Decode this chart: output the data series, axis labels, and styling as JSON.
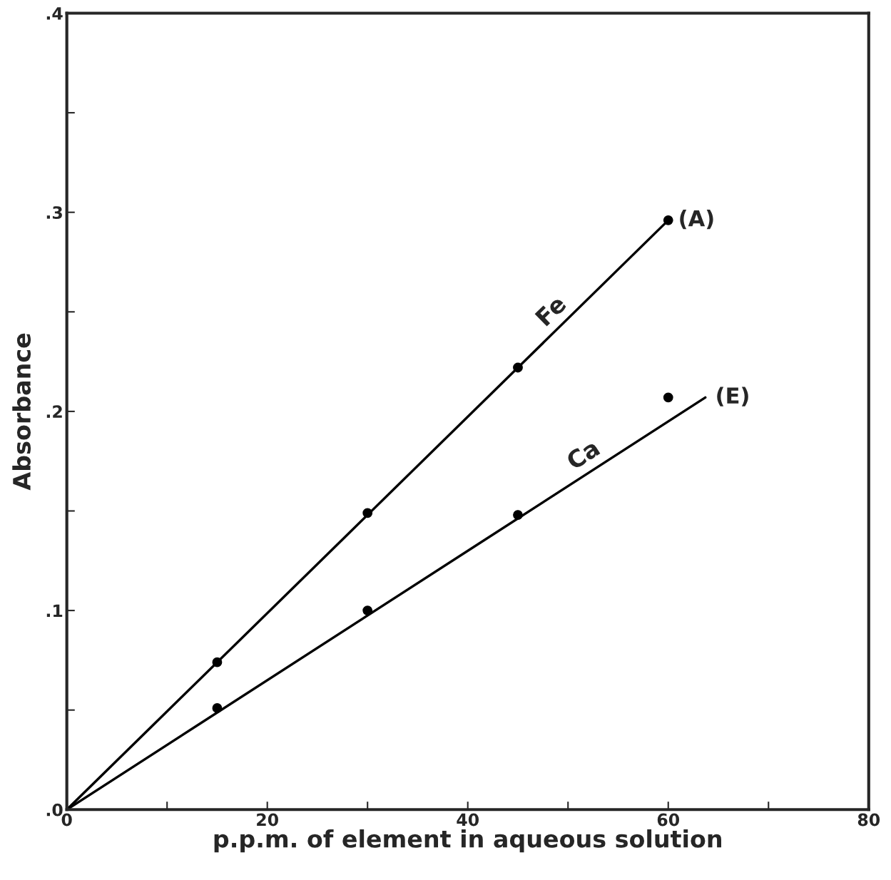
{
  "chart_data": {
    "type": "line",
    "xlabel": "p.p.m. of element in aqueous solution",
    "ylabel": "Absorbance",
    "xlim": [
      0,
      80
    ],
    "ylim": [
      0,
      0.4
    ],
    "xticks": [
      0,
      {
        "value": 10,
        "label": null
      },
      20,
      {
        "value": 30,
        "label": null
      },
      40,
      {
        "value": 50,
        "label": null
      },
      60,
      {
        "value": 70,
        "label": null
      },
      80
    ],
    "yticks": [
      {
        "value": 0,
        "label": ".0"
      },
      {
        "value": 0.05,
        "label": null
      },
      {
        "value": 0.1,
        "label": ".1"
      },
      {
        "value": 0.15,
        "label": null
      },
      {
        "value": 0.2,
        "label": ".2"
      },
      {
        "value": 0.25,
        "label": null
      },
      {
        "value": 0.3,
        "label": ".3"
      },
      {
        "value": 0.35,
        "label": null
      },
      {
        "value": 0.4,
        "label": ".4"
      }
    ],
    "grid": false,
    "legend": false,
    "series": [
      {
        "type": "scatter",
        "color": "#000000",
        "marker": "circle",
        "x": [
          15,
          30,
          45,
          60
        ],
        "values": [
          0.074,
          0.149,
          0.222,
          0.296
        ]
      },
      {
        "type": "scatter",
        "color": "#000000",
        "marker": "circle",
        "x": [
          15,
          30,
          45,
          60
        ],
        "values": [
          0.051,
          0.1,
          0.148,
          0.207
        ]
      },
      {
        "name": "Fe",
        "color": "#000000",
        "marker": "none",
        "x": [
          0,
          60
        ],
        "values": [
          0,
          0.296
        ]
      },
      {
        "name": "Ca",
        "color": "#000000",
        "marker": "none",
        "x": [
          0,
          63.7
        ],
        "values": [
          0,
          0.207
        ]
      }
    ],
    "annotations": [
      {
        "text": "(A)",
        "x": 60,
        "y": 0.296
      },
      {
        "text": "(E)",
        "x": 63.7,
        "y": 0.207
      }
    ]
  }
}
